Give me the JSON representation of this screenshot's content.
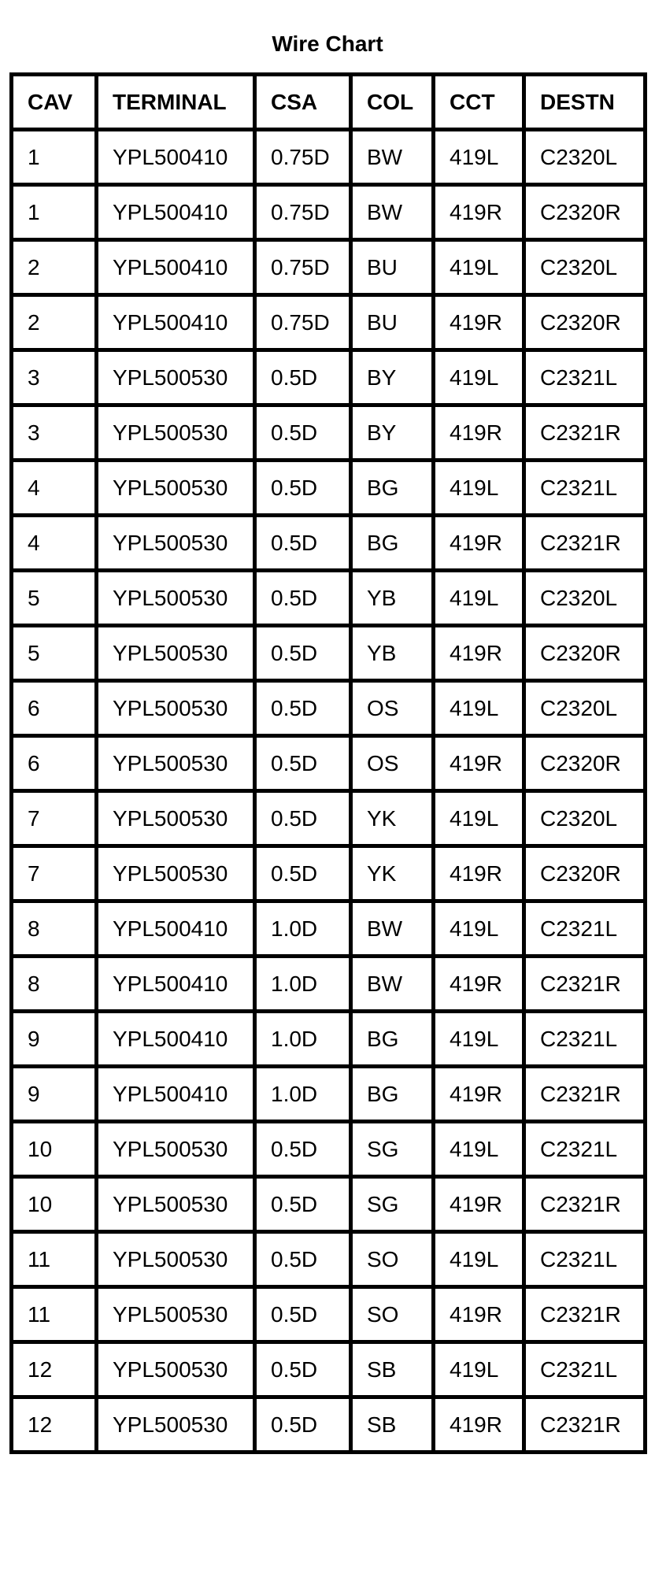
{
  "title": "Wire Chart",
  "columns": [
    "CAV",
    "TERMINAL",
    "CSA",
    "COL",
    "CCT",
    "DESTN"
  ],
  "rows": [
    [
      "1",
      "YPL500410",
      "0.75D",
      "BW",
      "419L",
      "C2320L"
    ],
    [
      "1",
      "YPL500410",
      "0.75D",
      "BW",
      "419R",
      "C2320R"
    ],
    [
      "2",
      "YPL500410",
      "0.75D",
      "BU",
      "419L",
      "C2320L"
    ],
    [
      "2",
      "YPL500410",
      "0.75D",
      "BU",
      "419R",
      "C2320R"
    ],
    [
      "3",
      "YPL500530",
      "0.5D",
      "BY",
      "419L",
      "C2321L"
    ],
    [
      "3",
      "YPL500530",
      "0.5D",
      "BY",
      "419R",
      "C2321R"
    ],
    [
      "4",
      "YPL500530",
      "0.5D",
      "BG",
      "419L",
      "C2321L"
    ],
    [
      "4",
      "YPL500530",
      "0.5D",
      "BG",
      "419R",
      "C2321R"
    ],
    [
      "5",
      "YPL500530",
      "0.5D",
      "YB",
      "419L",
      "C2320L"
    ],
    [
      "5",
      "YPL500530",
      "0.5D",
      "YB",
      "419R",
      "C2320R"
    ],
    [
      "6",
      "YPL500530",
      "0.5D",
      "OS",
      "419L",
      "C2320L"
    ],
    [
      "6",
      "YPL500530",
      "0.5D",
      "OS",
      "419R",
      "C2320R"
    ],
    [
      "7",
      "YPL500530",
      "0.5D",
      "YK",
      "419L",
      "C2320L"
    ],
    [
      "7",
      "YPL500530",
      "0.5D",
      "YK",
      "419R",
      "C2320R"
    ],
    [
      "8",
      "YPL500410",
      "1.0D",
      "BW",
      "419L",
      "C2321L"
    ],
    [
      "8",
      "YPL500410",
      "1.0D",
      "BW",
      "419R",
      "C2321R"
    ],
    [
      "9",
      "YPL500410",
      "1.0D",
      "BG",
      "419L",
      "C2321L"
    ],
    [
      "9",
      "YPL500410",
      "1.0D",
      "BG",
      "419R",
      "C2321R"
    ],
    [
      "10",
      "YPL500530",
      "0.5D",
      "SG",
      "419L",
      "C2321L"
    ],
    [
      "10",
      "YPL500530",
      "0.5D",
      "SG",
      "419R",
      "C2321R"
    ],
    [
      "11",
      "YPL500530",
      "0.5D",
      "SO",
      "419L",
      "C2321L"
    ],
    [
      "11",
      "YPL500530",
      "0.5D",
      "SO",
      "419R",
      "C2321R"
    ],
    [
      "12",
      "YPL500530",
      "0.5D",
      "SB",
      "419L",
      "C2321L"
    ],
    [
      "12",
      "YPL500530",
      "0.5D",
      "SB",
      "419R",
      "C2321R"
    ]
  ]
}
